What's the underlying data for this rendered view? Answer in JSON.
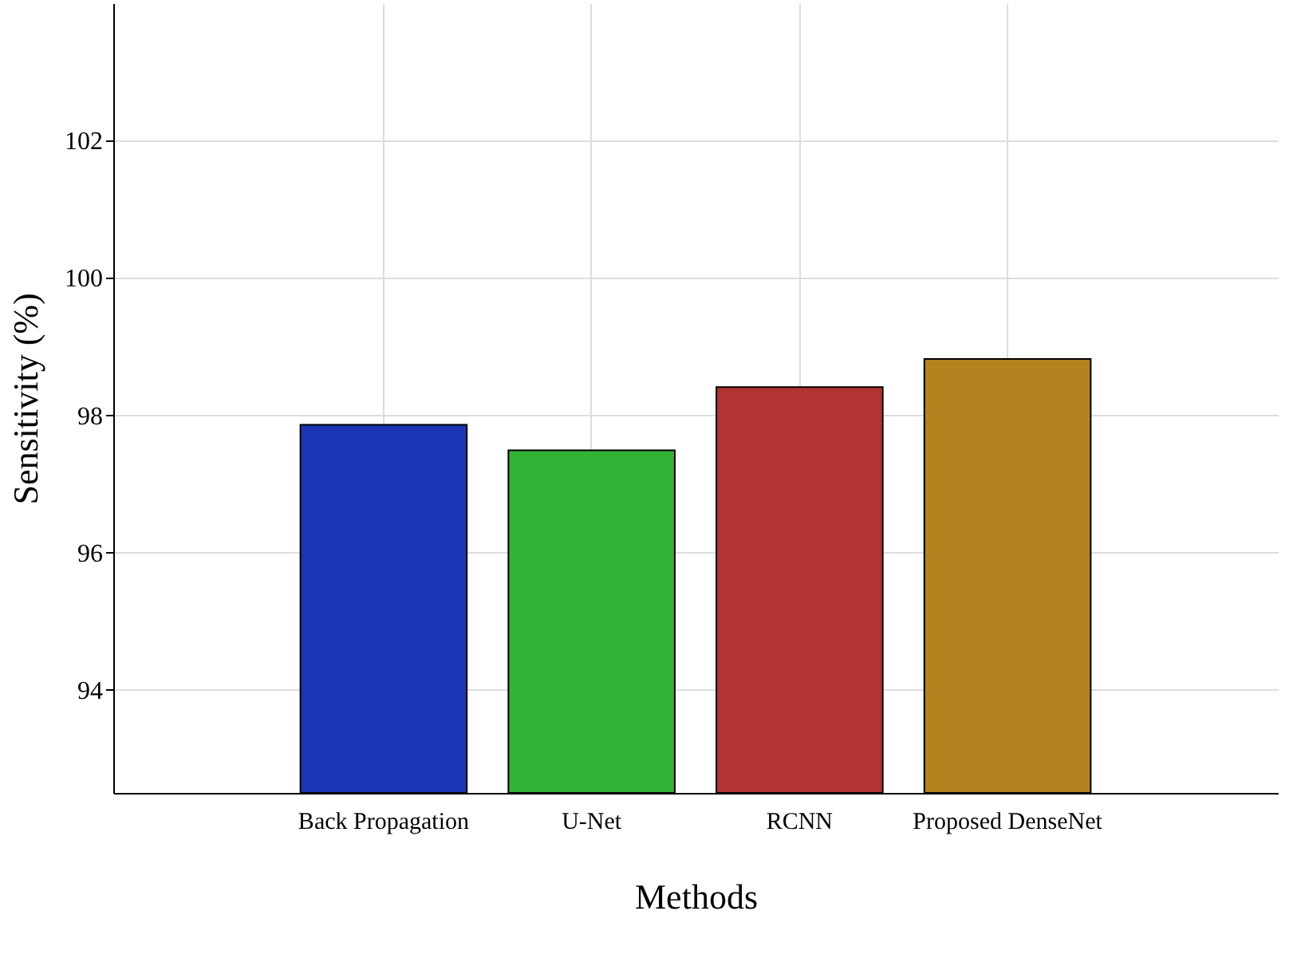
{
  "chart_data": {
    "type": "bar",
    "xlabel": "Methods",
    "ylabel": "Sensitivity (%)",
    "categories": [
      "Back Propagation",
      "U-Net",
      "RCNN",
      "Proposed DenseNet"
    ],
    "values": [
      97.86,
      97.49,
      98.41,
      98.82
    ],
    "colors": [
      "#1c35b5",
      "#33b336",
      "#b33333",
      "#b3821e"
    ],
    "ylim": [
      92.5,
      104
    ],
    "yticks": [
      94,
      96,
      98,
      100,
      102
    ],
    "grid": true
  }
}
